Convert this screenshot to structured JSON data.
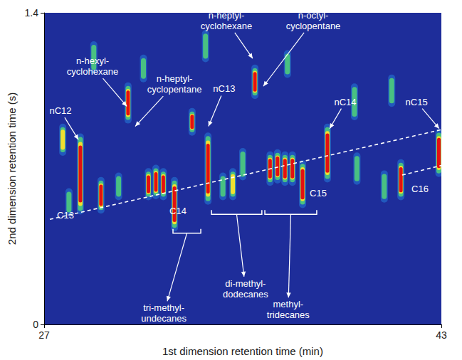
{
  "chart_data": {
    "type": "heatmap",
    "x_label": "1st dimension retention time (min)",
    "y_label": "2nd dimension retention time (s)",
    "xlim": [
      27,
      43
    ],
    "xticks": [
      27,
      43
    ],
    "ylim": [
      0,
      1.4
    ],
    "yticks": [
      0,
      1.4
    ],
    "color": "#1e2d9a",
    "grid": false,
    "peaks": {
      "x": [
        27.75,
        28.46,
        29.29,
        30.38,
        31.2,
        31.5,
        31.8,
        32.25,
        32.96,
        33.6,
        35.49,
        36.1,
        36.4,
        36.7,
        37.0,
        37.41,
        38.41,
        41.37,
        42.9,
        29.0,
        33.5,
        31.0,
        39.5,
        41.0,
        35.0,
        34.2,
        30.0,
        28.0,
        39.6,
        40.7,
        36.8,
        34.6
      ],
      "y": [
        0.83,
        0.676,
        0.58,
        0.995,
        0.63,
        0.64,
        0.63,
        0.54,
        0.91,
        0.7,
        1.09,
        0.7,
        0.71,
        0.7,
        0.7,
        0.63,
        0.77,
        0.65,
        0.77,
        1.2,
        1.25,
        1.15,
        1.0,
        1.05,
        0.72,
        0.62,
        0.62,
        0.55,
        0.7,
        0.62,
        1.17,
        0.63
      ],
      "width": [
        0.1,
        0.32,
        0.12,
        0.14,
        0.1,
        0.11,
        0.1,
        0.2,
        0.08,
        0.28,
        0.11,
        0.11,
        0.11,
        0.11,
        0.11,
        0.17,
        0.22,
        0.14,
        0.17,
        0.1,
        0.1,
        0.08,
        0.12,
        0.1,
        0.1,
        0.08,
        0.08,
        0.08,
        0.1,
        0.1,
        0.08,
        0.1
      ],
      "intensity": [
        60,
        100,
        85,
        90,
        80,
        80,
        75,
        90,
        70,
        100,
        95,
        80,
        85,
        80,
        75,
        90,
        100,
        85,
        95,
        30,
        35,
        30,
        40,
        35,
        45,
        40,
        35,
        45,
        40,
        40,
        30,
        50
      ]
    },
    "series": [
      {
        "type": "line",
        "line_style": "dashed",
        "color": "#ffffff",
        "x": [
          27.23,
          43
        ],
        "values": [
          0.472,
          0.875
        ]
      },
      {
        "type": "line",
        "line_style": "dashed",
        "color": "#ffffff",
        "x": [
          41.42,
          43
        ],
        "values": [
          0.671,
          0.714
        ]
      }
    ],
    "annotations": [
      {
        "text": "nC12",
        "x": 27.66,
        "y": 0.96,
        "arrow_to": [
          28.38,
          0.83
        ]
      },
      {
        "text": "n-hexyl-\ncyclohexane",
        "x": 28.95,
        "y": 1.16,
        "arrow_to": [
          30.33,
          0.98
        ]
      },
      {
        "text": "n-heptyl-\ncyclopentane",
        "x": 32.25,
        "y": 1.08,
        "arrow_to": [
          30.67,
          0.89
        ]
      },
      {
        "text": "n-heptyl-\ncyclohexane",
        "x": 34.34,
        "y": 1.365,
        "arrow_to": [
          35.4,
          1.195
        ]
      },
      {
        "text": "n-octyl-\ncyclopentane",
        "x": 37.84,
        "y": 1.365,
        "arrow_to": [
          35.83,
          1.07
        ]
      },
      {
        "text": "nC13",
        "x": 34.25,
        "y": 1.058,
        "arrow_to": [
          33.62,
          0.89
        ]
      },
      {
        "text": "nC14",
        "x": 39.13,
        "y": 1.0,
        "arrow_to": [
          38.5,
          0.88
        ]
      },
      {
        "text": "nC15",
        "x": 42.0,
        "y": 1.0,
        "arrow_to": [
          42.91,
          0.88
        ]
      },
      {
        "text": "C13",
        "x": 27.86,
        "y": 0.49
      },
      {
        "text": "C14",
        "x": 32.39,
        "y": 0.51
      },
      {
        "text": "C15",
        "x": 38.04,
        "y": 0.59
      },
      {
        "text": "C16",
        "x": 42.14,
        "y": 0.61
      }
    ],
    "brackets": [
      {
        "text": "tri-methyl-\nundecanes",
        "x0": 32.19,
        "x1": 33.31,
        "y": 0.41,
        "text_x": 31.82,
        "text_y": 0.05
      },
      {
        "text": "di-methyl-\ndodecanes",
        "x0": 33.74,
        "x1": 35.77,
        "y": 0.495,
        "text_x": 35.11,
        "text_y": 0.16
      },
      {
        "text": "methyl-\ntridecanes",
        "x0": 35.89,
        "x1": 37.98,
        "y": 0.495,
        "text_x": 36.83,
        "text_y": 0.066
      }
    ]
  }
}
